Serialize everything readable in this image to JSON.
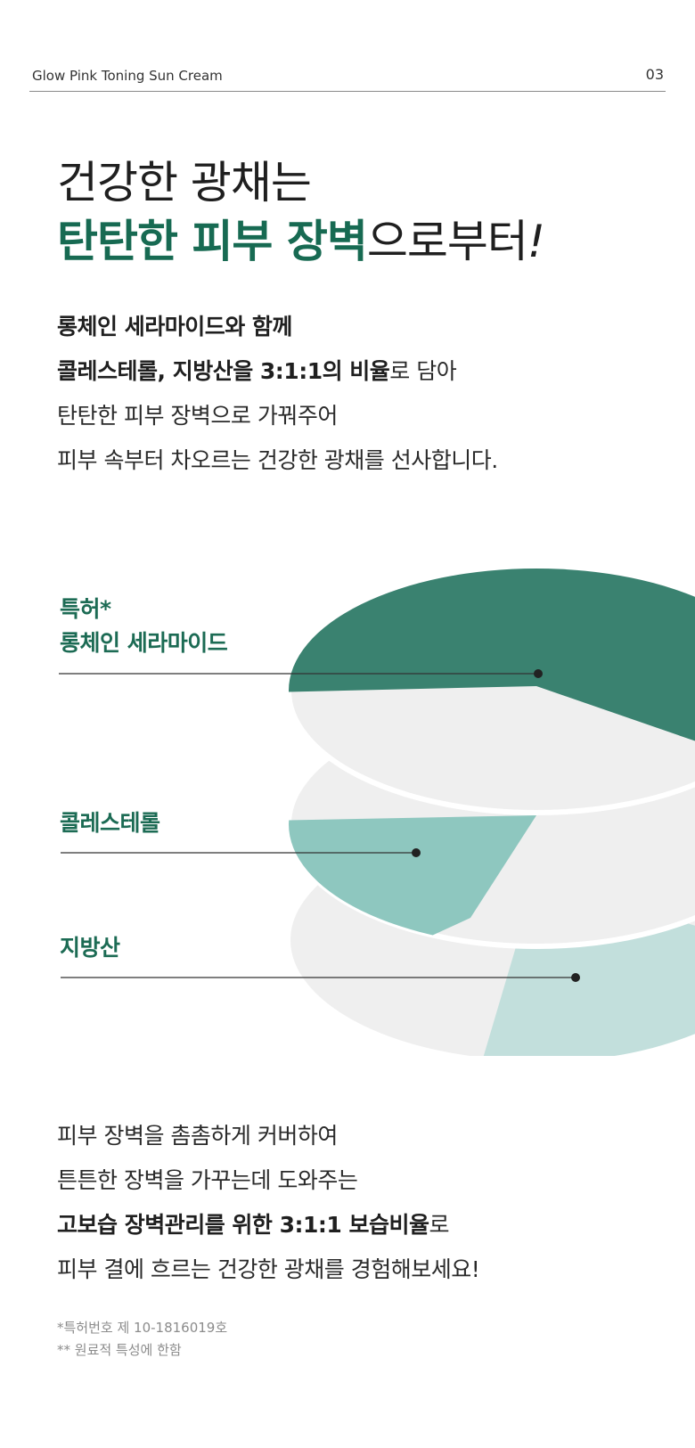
{
  "header": {
    "product_name": "Glow Pink Toning Sun Cream",
    "page_number": "03"
  },
  "headline": {
    "line1": "건강한 광채는",
    "line2_highlight": "탄탄한 피부 장벽",
    "line2_rest": "으로부터",
    "line2_exclaim": "!"
  },
  "intro": {
    "line1": "롱체인 세라마이드와 함께",
    "line2_bold": "콜레스테롤, 지방산을 3:1:1의 비율",
    "line2_rest": "로 담아",
    "line3": "탄탄한 피부 장벽으로 가꿔주어",
    "line4": "피부 속부터 차오르는 건강한 광채를 선사합니다."
  },
  "diagram": {
    "labels": [
      {
        "line1": "특허*",
        "line2": "롱체인 세라마이드"
      },
      {
        "line1": "콜레스테롤"
      },
      {
        "line1": "지방산"
      }
    ],
    "ratio": [
      {
        "name": "롱체인 세라마이드",
        "value": 3
      },
      {
        "name": "콜레스테롤",
        "value": 1
      },
      {
        "name": "지방산",
        "value": 1
      }
    ],
    "colors": {
      "ceramide": "#3a8270",
      "cholesterol": "#8ec7bf",
      "fatty_acid": "#c2dfdc",
      "disc": "#efefef",
      "line": "#333333"
    }
  },
  "outro": {
    "line1": "피부 장벽을 촘촘하게 커버하여",
    "line2": "튼튼한 장벽을 가꾸는데 도와주는",
    "line3_bold": "고보습 장벽관리를 위한 3:1:1 보습비율",
    "line3_rest": "로",
    "line4": "피부 결에 흐르는 건강한 광채를 경험해보세요!"
  },
  "footnotes": {
    "patent": "*특허번호 제 10-1816019호",
    "material": "** 원료적 특성에 한함"
  }
}
